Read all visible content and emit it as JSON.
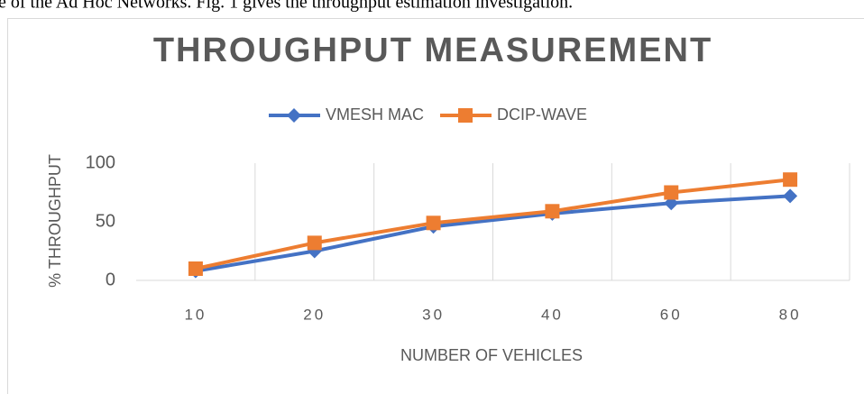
{
  "context_text": "e of the Ad Hoc Networks. Fig. 1 gives the throughput estimation investigation.",
  "chart_data": {
    "type": "line",
    "title": "THROUGHPUT MEASUREMENT",
    "x_label": "NUMBER OF VEHICLES",
    "y_label": "% THROUGHPUT",
    "categories": [
      "10",
      "20",
      "30",
      "40",
      "60",
      "80"
    ],
    "series": [
      {
        "name": "VMESH MAC",
        "color": "#4472c4",
        "marker": "diamond",
        "values": [
          8,
          25,
          46,
          57,
          66,
          72
        ]
      },
      {
        "name": "DCIP-WAVE",
        "color": "#ed7d31",
        "marker": "square",
        "values": [
          10,
          32,
          49,
          59,
          75,
          86
        ]
      }
    ],
    "ylim": [
      0,
      100
    ],
    "yticks": [
      0,
      50,
      100
    ],
    "legend": "top",
    "grid": true
  }
}
